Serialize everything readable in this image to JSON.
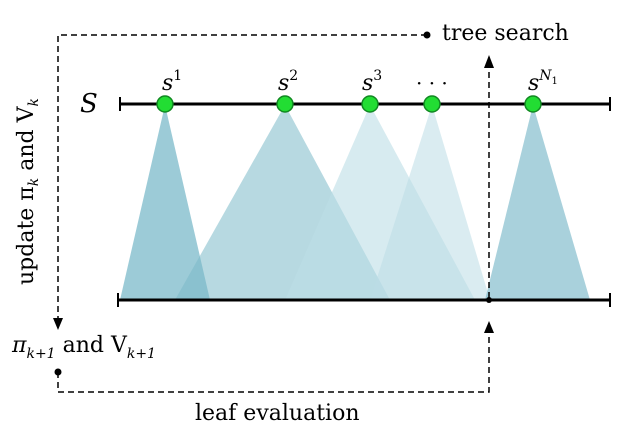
{
  "labels": {
    "top": "tree search",
    "bottom": "leaf evaluation",
    "state_space": "S",
    "left_vertical": "update π",
    "left_vertical_k": "k",
    "left_vertical_and": " and V",
    "left_vertical_k2": "k",
    "pi": "π",
    "k_plus_1": "k+1",
    "and_v": " and V",
    "k_plus_1_b": "k+1",
    "s": "s",
    "ellipsis": "· · ·",
    "sup1": "1",
    "sup2": "2",
    "sup3": "3",
    "supN": "N",
    "supN_sub": "1"
  },
  "colors": {
    "node_fill": "#22dd33",
    "node_stroke": "#118822",
    "cone_dark": "#7bb9c9",
    "cone_light": "#bcdde6",
    "line": "#000000"
  }
}
